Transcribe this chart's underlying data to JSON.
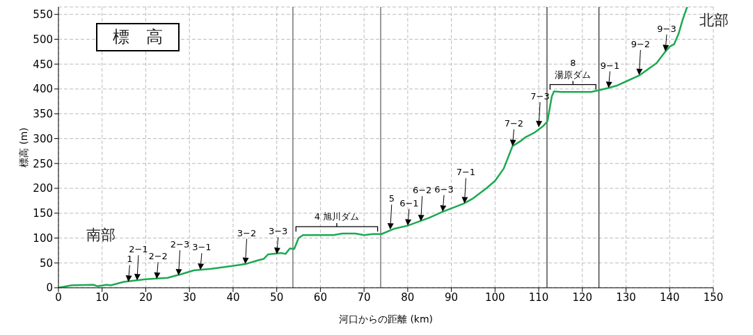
{
  "chart_data": {
    "type": "line",
    "xlabel": "河口からの距離 (km)",
    "ylabel": "標高 (m)",
    "x": [
      0,
      3,
      8,
      9,
      11,
      12,
      15,
      20,
      25,
      28,
      31,
      35,
      40,
      43,
      46,
      47,
      48,
      51,
      52,
      53,
      54,
      55,
      56,
      63,
      65,
      68,
      70,
      72,
      74,
      77,
      80,
      85,
      88,
      91,
      93,
      95,
      98,
      100,
      102,
      104,
      106,
      107,
      109,
      111,
      112,
      113,
      113.5,
      115,
      122,
      124,
      126,
      128,
      130,
      133,
      137,
      139,
      140,
      141,
      142,
      143,
      144
    ],
    "series": [
      {
        "color": "#1aaa50",
        "values": [
          0,
          5,
          6,
          3,
          6,
          5,
          12,
          17,
          20,
          27,
          35,
          38,
          44,
          48,
          56,
          58,
          67,
          70,
          68,
          79,
          78,
          100,
          106,
          106,
          109,
          109,
          106,
          108,
          108,
          119,
          125,
          141,
          153,
          163,
          170,
          180,
          200,
          215,
          240,
          285,
          296,
          303,
          312,
          325,
          335,
          385,
          395,
          394,
          394,
          398,
          402,
          407,
          415,
          427,
          452,
          475,
          485,
          490,
          510,
          540,
          565
        ]
      }
    ],
    "xlim": [
      0,
      150
    ],
    "xticks": [
      0,
      10,
      20,
      30,
      40,
      50,
      60,
      70,
      80,
      90,
      100,
      110,
      120,
      130,
      140,
      150
    ],
    "ylim": [
      0,
      565
    ],
    "yticks": [
      0,
      50,
      100,
      150,
      200,
      250,
      300,
      350,
      400,
      450,
      500,
      550
    ],
    "grid": true,
    "legend": false,
    "marker": "none",
    "line_style": "solid",
    "ref_lines": [
      {
        "axis": "x",
        "value": 53.7,
        "color": "#555555"
      },
      {
        "axis": "x",
        "value": 73.8,
        "color": "#555555"
      },
      {
        "axis": "x",
        "value": 111.9,
        "color": "#222222"
      },
      {
        "axis": "x",
        "value": 123.8,
        "color": "#222222"
      }
    ],
    "annotations": [
      "標　高",
      "南部",
      "北部",
      "4 旭川ダム",
      "8\n湯原ダム",
      {
        "text": "1",
        "x": 16,
        "y": 12
      },
      {
        "text": "2−1",
        "x": 18,
        "y": 15
      },
      {
        "text": "2−2",
        "x": 22.5,
        "y": 18
      },
      {
        "text": "2−3",
        "x": 27.5,
        "y": 25
      },
      {
        "text": "3−1",
        "x": 32.5,
        "y": 36
      },
      {
        "text": "3−2",
        "x": 42.8,
        "y": 48
      },
      {
        "text": "3−3",
        "x": 50,
        "y": 68
      },
      {
        "text": "5",
        "x": 76,
        "y": 117
      },
      {
        "text": "6−1",
        "x": 80,
        "y": 125
      },
      {
        "text": "6−2",
        "x": 83,
        "y": 134
      },
      {
        "text": "6−3",
        "x": 88,
        "y": 153
      },
      {
        "text": "7−1",
        "x": 93,
        "y": 170
      },
      {
        "text": "7−2",
        "x": 104,
        "y": 285
      },
      {
        "text": "7−3",
        "x": 110,
        "y": 323
      },
      {
        "text": "9−1",
        "x": 126,
        "y": 402
      },
      {
        "text": "9−2",
        "x": 133,
        "y": 428
      },
      {
        "text": "9−3",
        "x": 139,
        "y": 476
      }
    ]
  }
}
